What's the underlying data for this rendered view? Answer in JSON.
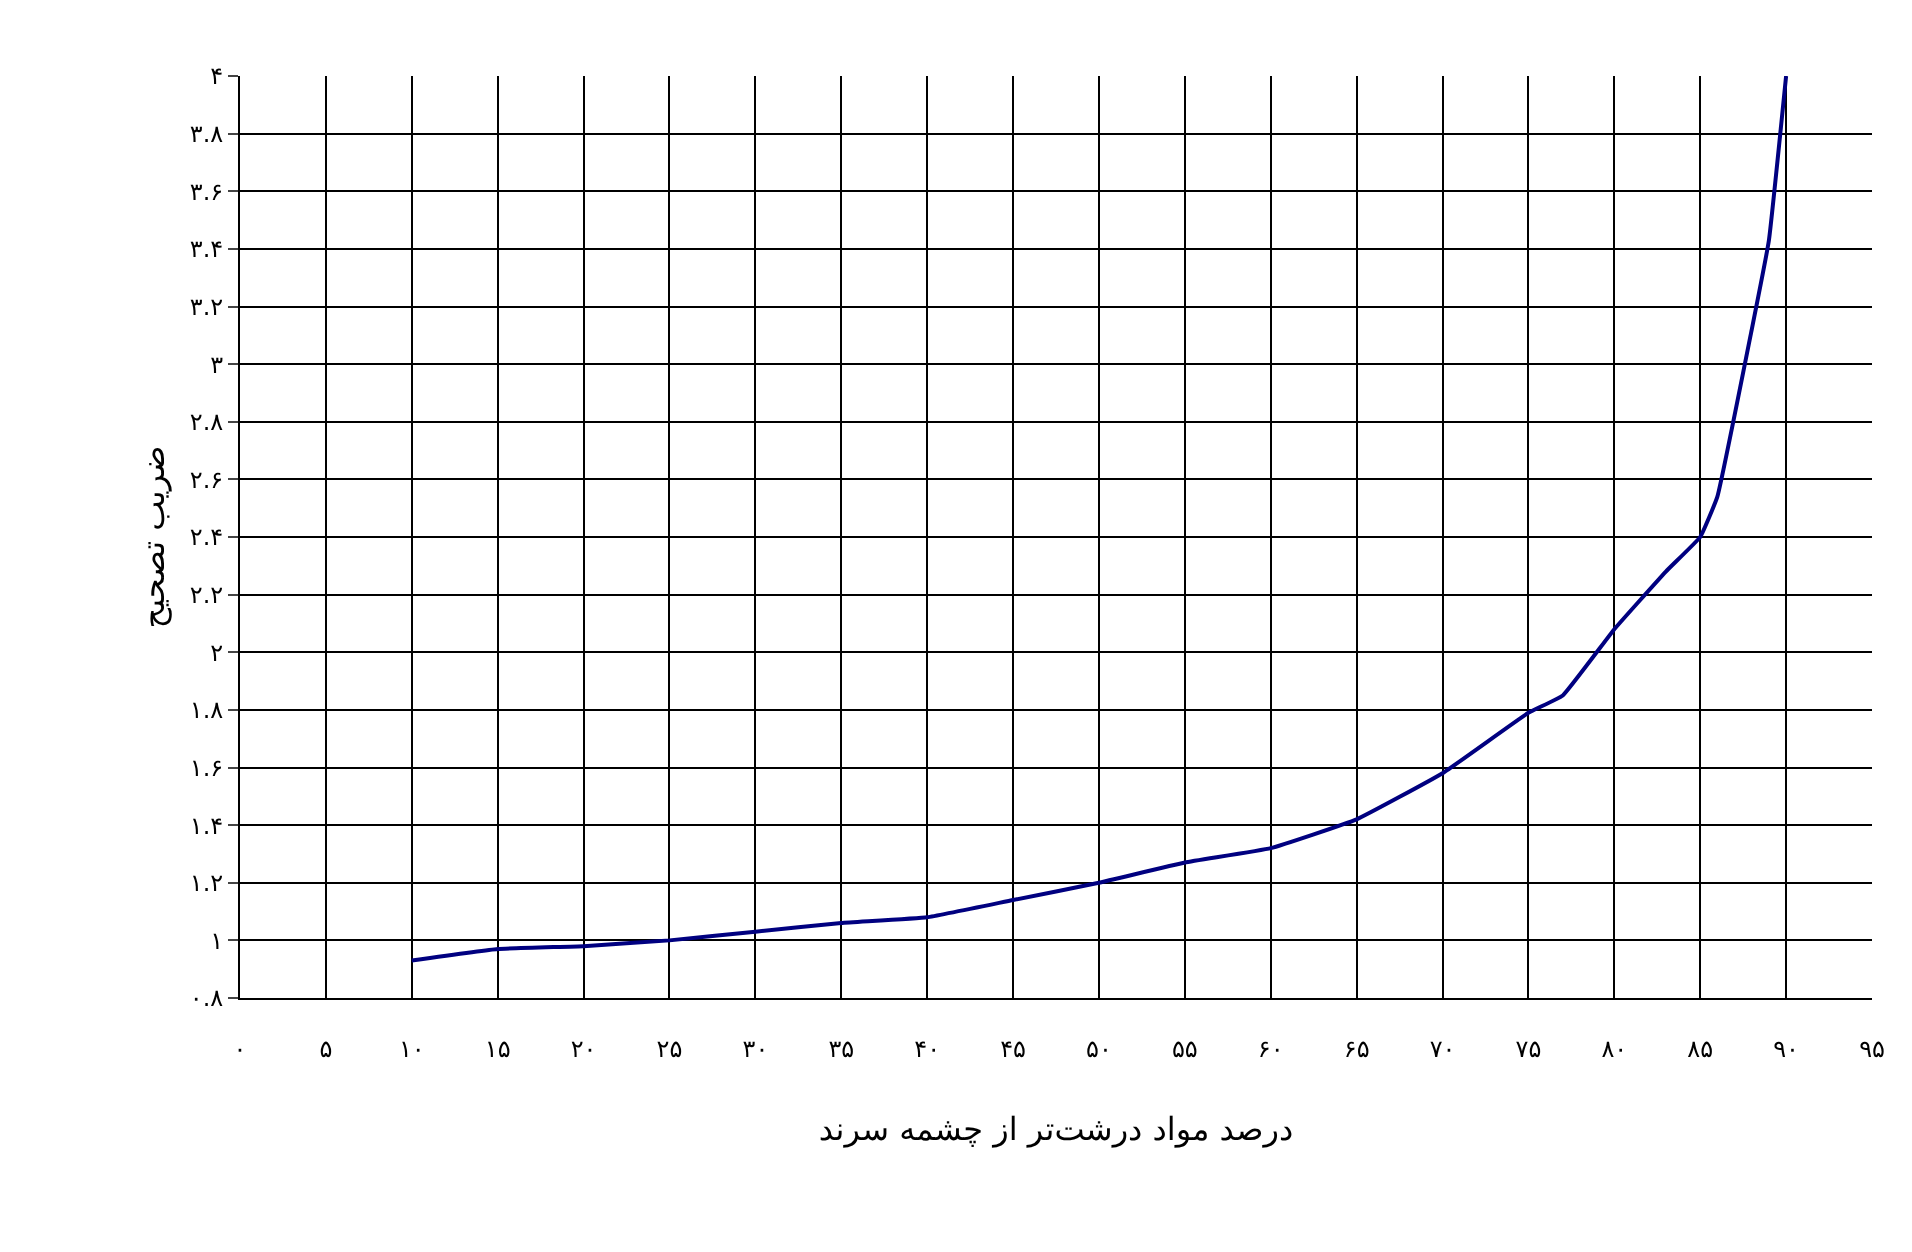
{
  "chart_data": {
    "type": "line",
    "xlabel": "درصد مواد درشت‌تر از چشمه سرند",
    "ylabel": "ضریب تصحیح",
    "x": [
      10,
      15,
      20,
      25,
      30,
      35,
      40,
      45,
      50,
      55,
      60,
      65,
      70,
      75,
      77,
      80,
      83,
      85,
      86,
      88,
      89,
      90
    ],
    "series": [
      {
        "color": "#000080",
        "values": [
          0.93,
          0.97,
          0.98,
          1.0,
          1.03,
          1.06,
          1.08,
          1.14,
          1.2,
          1.27,
          1.32,
          1.42,
          1.58,
          1.79,
          1.85,
          2.08,
          2.28,
          2.4,
          2.54,
          3.12,
          3.43,
          4.0
        ]
      }
    ],
    "xlim": [
      0,
      95
    ],
    "ylim": [
      0.8,
      4
    ],
    "xticks": [
      {
        "value": 0,
        "label": "۰"
      },
      {
        "value": 5,
        "label": "۵"
      },
      {
        "value": 10,
        "label": "۱۰"
      },
      {
        "value": 15,
        "label": "۱۵"
      },
      {
        "value": 20,
        "label": "۲۰"
      },
      {
        "value": 25,
        "label": "۲۵"
      },
      {
        "value": 30,
        "label": "۳۰"
      },
      {
        "value": 35,
        "label": "۳۵"
      },
      {
        "value": 40,
        "label": "۴۰"
      },
      {
        "value": 45,
        "label": "۴۵"
      },
      {
        "value": 50,
        "label": "۵۰"
      },
      {
        "value": 55,
        "label": "۵۵"
      },
      {
        "value": 60,
        "label": "۶۰"
      },
      {
        "value": 65,
        "label": "۶۵"
      },
      {
        "value": 70,
        "label": "۷۰"
      },
      {
        "value": 75,
        "label": "۷۵"
      },
      {
        "value": 80,
        "label": "۸۰"
      },
      {
        "value": 85,
        "label": "۸۵"
      },
      {
        "value": 90,
        "label": "۹۰"
      },
      {
        "value": 95,
        "label": "۹۵"
      }
    ],
    "yticks": [
      {
        "value": 0.8,
        "label": "۰.۸"
      },
      {
        "value": 1,
        "label": "۱"
      },
      {
        "value": 1.2,
        "label": "۱.۲"
      },
      {
        "value": 1.4,
        "label": "۱.۴"
      },
      {
        "value": 1.6,
        "label": "۱.۶"
      },
      {
        "value": 1.8,
        "label": "۱.۸"
      },
      {
        "value": 2,
        "label": "۲"
      },
      {
        "value": 2.2,
        "label": "۲.۲"
      },
      {
        "value": 2.4,
        "label": "۲.۴"
      },
      {
        "value": 2.6,
        "label": "۲.۶"
      },
      {
        "value": 2.8,
        "label": "۲.۸"
      },
      {
        "value": 3,
        "label": "۳"
      },
      {
        "value": 3.2,
        "label": "۳.۲"
      },
      {
        "value": 3.4,
        "label": "۳.۴"
      },
      {
        "value": 3.6,
        "label": "۳.۶"
      },
      {
        "value": 3.8,
        "label": "۳.۸"
      },
      {
        "value": 4,
        "label": "۴"
      }
    ],
    "grid": true,
    "legend": false,
    "marker": "none",
    "line_style": "solid"
  }
}
